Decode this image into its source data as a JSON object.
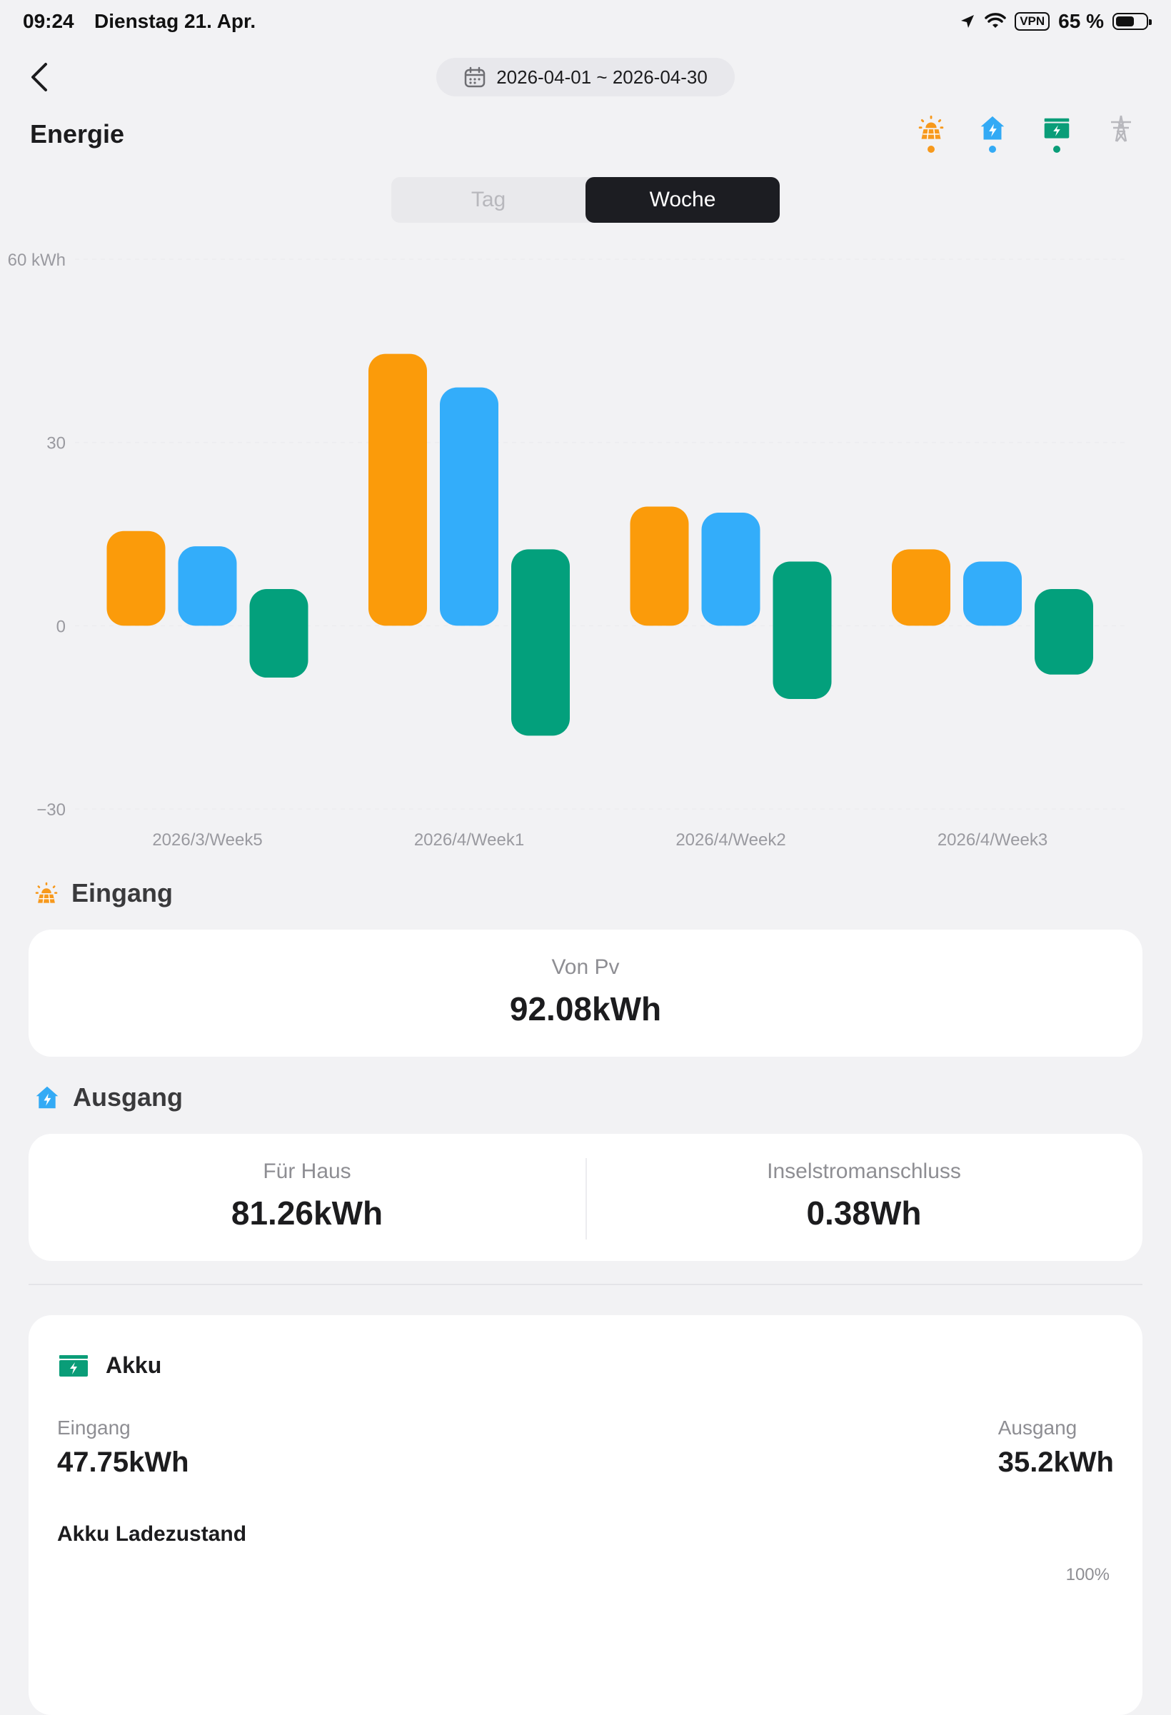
{
  "status": {
    "time": "09:24",
    "date": "Dienstag 21. Apr.",
    "vpn": "VPN",
    "battery_text": "65 %",
    "battery_level": 0.65
  },
  "header": {
    "date_range": "2026-04-01 ~ 2026-04-30",
    "title": "Energie",
    "modes": [
      {
        "icon": "solar-panel-icon",
        "color": "#f7991c",
        "active": true
      },
      {
        "icon": "home-power-icon",
        "color": "#33aaf5",
        "active": true
      },
      {
        "icon": "battery-icon",
        "color": "#0a9d78",
        "active": true
      },
      {
        "icon": "power-grid-icon",
        "color": "#b8b8bd",
        "active": false
      }
    ]
  },
  "toggle": {
    "options": [
      "Tag",
      "Woche"
    ],
    "selected": "Woche"
  },
  "colors": {
    "pv": "#fb9b0a",
    "house": "#33adfa",
    "battery": "#03a07c",
    "grid_line": "#ececef"
  },
  "chart_data": {
    "type": "bar",
    "categories": [
      "2026/3/Week5",
      "2026/4/Week1",
      "2026/4/Week2",
      "2026/4/Week3"
    ],
    "series": [
      {
        "values": [
          15.5,
          44.5,
          19.5,
          12.5
        ]
      },
      {
        "values": [
          13,
          39,
          18.5,
          10.5
        ]
      },
      {
        "values": [
          -8.5,
          -18,
          -12,
          -8
        ]
      }
    ],
    "series_floats": [
      [
        [
          0,
          15.5
        ],
        [
          0,
          44.5
        ],
        [
          0,
          19.5
        ],
        [
          0,
          12.5
        ]
      ],
      [
        [
          0,
          13
        ],
        [
          0,
          39
        ],
        [
          0,
          18.5
        ],
        [
          0,
          10.5
        ]
      ],
      [
        [
          -8.5,
          6
        ],
        [
          -18,
          12.5
        ],
        [
          -12,
          10.5
        ],
        [
          -8,
          6
        ]
      ]
    ],
    "yticks": [
      "60 kWh",
      "30",
      "0",
      "−30"
    ],
    "ytick_values": [
      60,
      30,
      0,
      -30
    ],
    "ylim": [
      -30,
      60
    ],
    "grid": true
  },
  "eingang": {
    "title": "Eingang",
    "label": "Von Pv",
    "value": "92.08kWh"
  },
  "ausgang": {
    "title": "Ausgang",
    "items": [
      {
        "label": "Für Haus",
        "value": "81.26kWh"
      },
      {
        "label": "Inselstromanschluss",
        "value": "0.38Wh"
      }
    ]
  },
  "akku": {
    "title": "Akku",
    "in_label": "Eingang",
    "in_value": "47.75kWh",
    "out_label": "Ausgang",
    "out_value": "35.2kWh",
    "soc_title": "Akku Ladezustand",
    "soc_axis_max": "100%"
  }
}
